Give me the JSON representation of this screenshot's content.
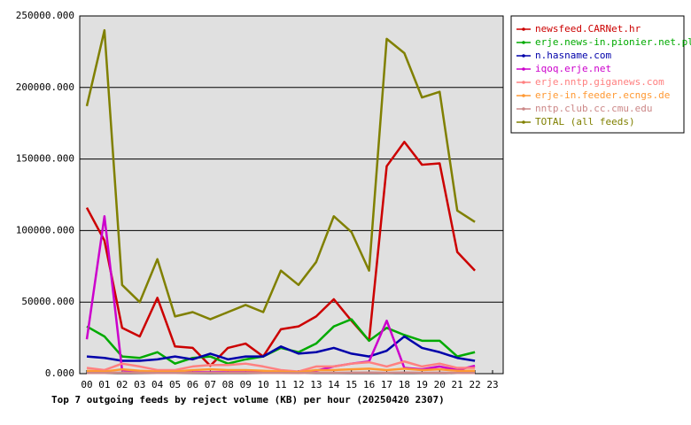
{
  "chart_data": {
    "type": "line",
    "title": "Top 7 outgoing feeds by reject volume (KB) per hour (20250420 2307)",
    "categories": [
      "00",
      "01",
      "02",
      "03",
      "04",
      "05",
      "06",
      "07",
      "08",
      "09",
      "10",
      "11",
      "12",
      "13",
      "14",
      "15",
      "16",
      "17",
      "18",
      "19",
      "20",
      "21",
      "22",
      "23"
    ],
    "ylim": [
      0,
      250000
    ],
    "yticks": [
      {
        "value": 0,
        "label": "0.000"
      },
      {
        "value": 50000,
        "label": "50000.000"
      },
      {
        "value": 100000,
        "label": "100000.000"
      },
      {
        "value": 150000,
        "label": "150000.000"
      },
      {
        "value": 200000,
        "label": "200000.000"
      },
      {
        "value": 250000,
        "label": "250000.000"
      }
    ],
    "grid": true,
    "legend": "right",
    "series": [
      {
        "name": "newsfeed.CARNet.hr",
        "color": "#cc0000",
        "values": [
          116000,
          93000,
          32000,
          26000,
          53000,
          19000,
          18000,
          5500,
          18000,
          21000,
          12000,
          31000,
          33000,
          40000,
          52000,
          37000,
          23000,
          145000,
          162000,
          146000,
          147000,
          85000,
          72000,
          null
        ]
      },
      {
        "name": "erje.news-in.pionier.net.pl",
        "color": "#00aa00",
        "values": [
          33000,
          26000,
          12000,
          11000,
          15000,
          7000,
          11000,
          12000,
          7000,
          10000,
          12000,
          18000,
          15000,
          21000,
          33000,
          38000,
          23000,
          32000,
          27000,
          23000,
          23000,
          12000,
          15000,
          null
        ]
      },
      {
        "name": "n.hasname.com",
        "color": "#0000aa",
        "values": [
          12000,
          11000,
          9000,
          9000,
          10000,
          12000,
          10000,
          14000,
          10000,
          12000,
          12000,
          19000,
          14000,
          15000,
          18000,
          14000,
          12000,
          16000,
          26000,
          18000,
          15000,
          11000,
          9000,
          null
        ]
      },
      {
        "name": "iqoq.erje.net",
        "color": "#cc00cc",
        "values": [
          24000,
          110000,
          2500,
          1500,
          1000,
          1000,
          1000,
          1000,
          1000,
          1000,
          1000,
          1000,
          1000,
          2000,
          5000,
          7000,
          8500,
          37000,
          4000,
          3000,
          5000,
          2500,
          5500,
          null
        ]
      },
      {
        "name": "erje.nntp.giganews.com",
        "color": "#ff8080",
        "values": [
          4000,
          2500,
          7000,
          5000,
          2500,
          2500,
          5000,
          6000,
          6000,
          7000,
          5000,
          2500,
          1500,
          5000,
          5000,
          7000,
          8000,
          5000,
          8500,
          5000,
          7000,
          4000,
          4000,
          null
        ]
      },
      {
        "name": "erje-in.feeder.ecngs.de",
        "color": "#ff9933",
        "values": [
          2000,
          1500,
          3000,
          2000,
          1500,
          1500,
          2500,
          3000,
          2500,
          2500,
          2000,
          1500,
          1000,
          2500,
          2500,
          3000,
          3500,
          2500,
          3500,
          2500,
          3000,
          2000,
          2000,
          null
        ]
      },
      {
        "name": "nntp.club.cc.cmu.edu",
        "color": "#cc8888",
        "values": [
          500,
          500,
          800,
          600,
          500,
          500,
          600,
          700,
          600,
          600,
          500,
          500,
          400,
          600,
          600,
          700,
          800,
          600,
          800,
          600,
          700,
          500,
          500,
          null
        ]
      },
      {
        "name": "TOTAL (all feeds)",
        "color": "#808000",
        "values": [
          187000,
          240000,
          62000,
          50000,
          80000,
          40000,
          43000,
          38000,
          43000,
          48000,
          43000,
          72000,
          62000,
          78000,
          110000,
          99000,
          72000,
          234000,
          224000,
          193000,
          197000,
          114000,
          106000,
          null
        ]
      }
    ]
  }
}
